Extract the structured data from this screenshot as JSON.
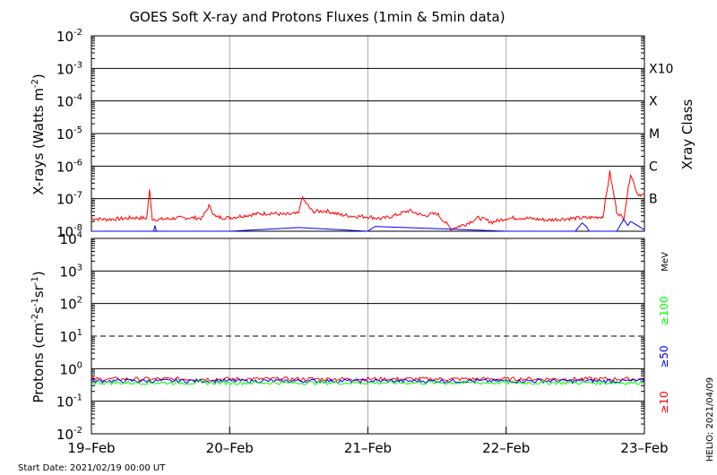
{
  "title": "GOES Soft X-ray and Protons Fluxes   (1min & 5min data)",
  "footer": {
    "start_date": "Start Date: 2021/02/19 00:00 UT",
    "stamp": "HELIO: 2021/04/09"
  },
  "colors": {
    "xray_long": "#ff0000",
    "xray_short": "#0000ff",
    "p10": "#ff0000",
    "p50": "#0000ff",
    "p100": "#00ff00",
    "grid": "#000000",
    "day_lines": "#aaaaaa"
  },
  "chart_data": [
    {
      "type": "line",
      "panel": "xray",
      "ylabel_main": "X-rays (Watts m",
      "ylabel_sup": "-2",
      "ylabel_close": ")",
      "y_scale": "log",
      "ylim": [
        1e-08,
        0.01
      ],
      "y_ticks": [
        {
          "base": "10",
          "exp": "-8"
        },
        {
          "base": "10",
          "exp": "-7"
        },
        {
          "base": "10",
          "exp": "-6"
        },
        {
          "base": "10",
          "exp": "-5"
        },
        {
          "base": "10",
          "exp": "-4"
        },
        {
          "base": "10",
          "exp": "-3"
        },
        {
          "base": "10",
          "exp": "-2"
        }
      ],
      "right_axis_title": "Xray Class",
      "classes": [
        {
          "label": "B",
          "level": 1e-07
        },
        {
          "label": "C",
          "level": 1e-06
        },
        {
          "label": "M",
          "level": 1e-05
        },
        {
          "label": "X",
          "level": 0.0001
        },
        {
          "label": "X10",
          "level": 0.001
        }
      ],
      "grid": true,
      "series": [
        {
          "color": "#ff0000",
          "x_days": [
            0,
            0.1,
            0.2,
            0.3,
            0.4,
            0.42,
            0.44,
            0.5,
            0.6,
            0.7,
            0.8,
            0.85,
            0.9,
            1.0,
            1.1,
            1.2,
            1.3,
            1.4,
            1.5,
            1.52,
            1.6,
            1.7,
            1.8,
            1.9,
            2.0,
            2.1,
            2.2,
            2.3,
            2.4,
            2.5,
            2.6,
            2.7,
            2.8,
            2.9,
            3.0,
            3.1,
            3.2,
            3.3,
            3.4,
            3.5,
            3.6,
            3.7,
            3.75,
            3.8,
            3.85,
            3.9,
            3.95,
            4.0
          ],
          "values": [
            2.5e-08,
            2.3e-08,
            2.4e-08,
            2.6e-08,
            2.5e-08,
            1.8e-07,
            2.4e-08,
            2.3e-08,
            2.5e-08,
            2.6e-08,
            2.5e-08,
            6e-08,
            2.7e-08,
            2.6e-08,
            3e-08,
            3.4e-08,
            3.6e-08,
            3.2e-08,
            3.5e-08,
            1.1e-07,
            4e-08,
            4.2e-08,
            3.2e-08,
            2.9e-08,
            2.8e-08,
            2.4e-08,
            3.1e-08,
            4.3e-08,
            3e-08,
            3.5e-08,
            1.2e-08,
            1.6e-08,
            2.6e-08,
            1.9e-08,
            2.5e-08,
            2.6e-08,
            2.4e-08,
            2.2e-08,
            2.4e-08,
            2.5e-08,
            2.6e-08,
            2.8e-08,
            6.5e-07,
            4e-08,
            2.4e-08,
            6e-07,
            1.4e-07,
            1.3e-07
          ]
        },
        {
          "color": "#0000ff",
          "x_days": [
            0,
            0.45,
            0.46,
            0.47,
            0.6,
            1.0,
            1.5,
            2.0,
            2.05,
            2.5,
            3.0,
            3.5,
            3.55,
            3.58,
            3.6,
            3.8,
            3.85,
            3.88,
            3.9,
            3.95,
            4.0
          ],
          "values": [
            1e-08,
            1e-08,
            1.5e-08,
            1e-08,
            1e-08,
            1e-08,
            1.3e-08,
            1e-08,
            1.4e-08,
            1.2e-08,
            1e-08,
            1e-08,
            1.8e-08,
            1.4e-08,
            1e-08,
            1e-08,
            2.3e-08,
            1.5e-08,
            2e-08,
            1.5e-08,
            1.1e-08
          ]
        }
      ]
    },
    {
      "type": "line",
      "panel": "protons",
      "ylabel_main": "Protons (cm",
      "ylabel_parts": [
        {
          "base": "-2",
          "kind": "sup"
        },
        {
          "base": "s",
          "kind": "text"
        },
        {
          "base": "-1",
          "kind": "sup"
        },
        {
          "base": "sr",
          "kind": "text"
        },
        {
          "base": "-1",
          "kind": "sup"
        },
        {
          "base": ")",
          "kind": "text"
        }
      ],
      "y_scale": "log",
      "ylim": [
        0.01,
        10000
      ],
      "y_ticks": [
        {
          "base": "10",
          "exp": "-2"
        },
        {
          "base": "10",
          "exp": "-1"
        },
        {
          "base": "10",
          "exp": "0"
        },
        {
          "base": "10",
          "exp": "1"
        },
        {
          "base": "10",
          "exp": "2"
        },
        {
          "base": "10",
          "exp": "3"
        },
        {
          "base": "10",
          "exp": "4"
        }
      ],
      "threshold": {
        "level": 10,
        "style": "dashed"
      },
      "right_unit": "MeV",
      "legend": [
        "≥100",
        "≥50",
        "≥10"
      ],
      "grid": true,
      "series": [
        {
          "name": "≥10",
          "color": "#ff0000",
          "level": 0.48
        },
        {
          "name": "≥50",
          "color": "#0000ff",
          "level": 0.42
        },
        {
          "name": "≥100",
          "color": "#00ff00",
          "level": 0.37
        }
      ],
      "x_range_days": [
        0,
        4
      ],
      "xtick_labels": [
        "19–Feb",
        "20–Feb",
        "21–Feb",
        "22–Feb",
        "23–Feb"
      ]
    }
  ]
}
